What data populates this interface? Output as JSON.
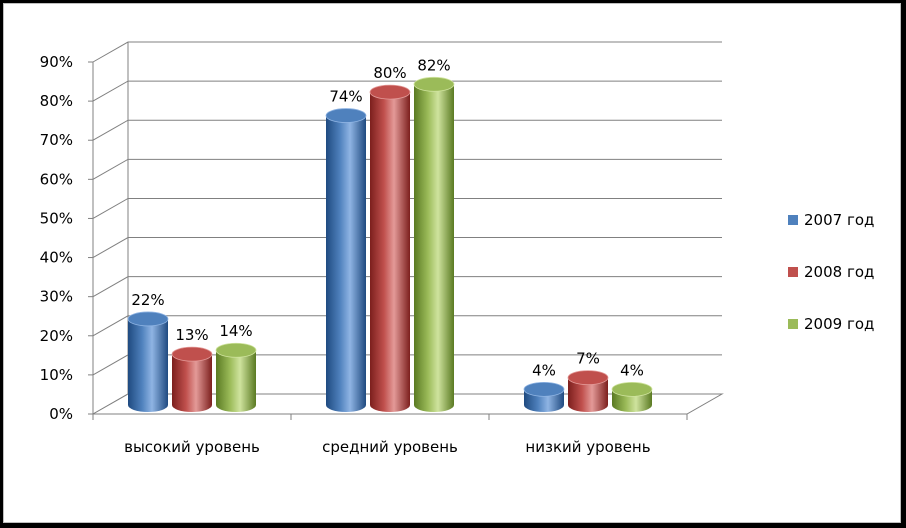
{
  "chart_data": {
    "type": "bar",
    "title": "",
    "xlabel": "",
    "ylabel": "",
    "ylim": [
      0,
      90
    ],
    "y_ticks": [
      "0%",
      "10%",
      "20%",
      "30%",
      "40%",
      "50%",
      "60%",
      "70%",
      "80%",
      "90%"
    ],
    "categories": [
      "высокий уровень",
      "средний уровень",
      "низкий уровень"
    ],
    "series": [
      {
        "name": "2007 год",
        "color": "#4f81bd",
        "dark": "#1f4a80",
        "light": "#8fb4e3",
        "values": [
          22,
          74,
          4
        ],
        "labels": [
          "22%",
          "74%",
          "4%"
        ]
      },
      {
        "name": "2008 год",
        "color": "#c0504d",
        "dark": "#7c1f1d",
        "light": "#e39a98",
        "values": [
          13,
          80,
          7
        ],
        "labels": [
          "13%",
          "80%",
          "7%"
        ]
      },
      {
        "name": "2009 год",
        "color": "#9bbb59",
        "dark": "#5a7a22",
        "light": "#cfe39e",
        "values": [
          14,
          82,
          4
        ],
        "labels": [
          "14%",
          "82%",
          "4%"
        ]
      }
    ],
    "grid": true,
    "legend_position": "right"
  }
}
